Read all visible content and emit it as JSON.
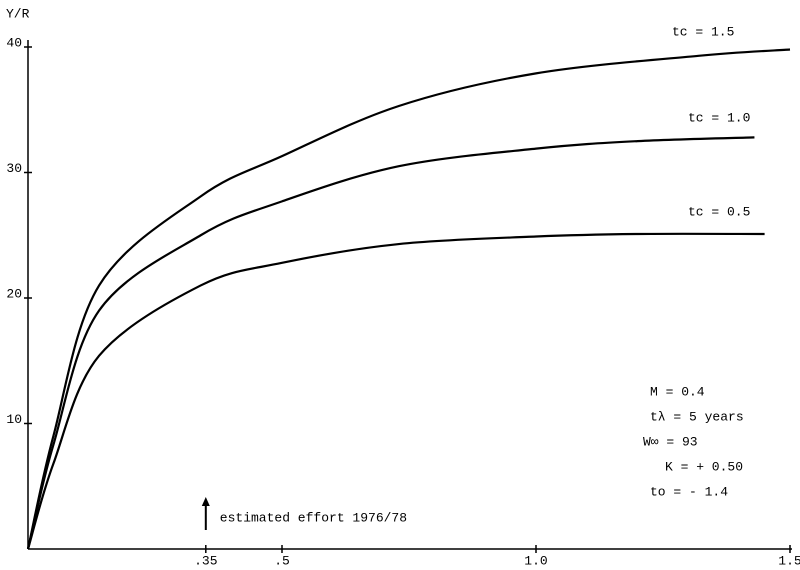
{
  "chart_data": {
    "type": "line",
    "ylabel": "Y/R",
    "xlim": [
      0,
      1.5
    ],
    "ylim": [
      0,
      40
    ],
    "xticks": [
      {
        "value": 0.35,
        "label": ".35"
      },
      {
        "value": 0.5,
        "label": ".5"
      },
      {
        "value": 1,
        "label": "1.0"
      },
      1.5
    ],
    "yticks": [
      10,
      20,
      30,
      40
    ],
    "series": [
      {
        "name": "tc = 1.5",
        "color": "#000000",
        "x": [
          0,
          0.05,
          0.14,
          0.34,
          0.5,
          0.73,
          1.0,
          1.32,
          1.5
        ],
        "values": [
          0,
          9,
          21,
          28.1,
          31.3,
          35.3,
          37.9,
          39.3,
          39.8
        ]
      },
      {
        "name": "tc = 1.0",
        "color": "#000000",
        "x": [
          0,
          0.05,
          0.14,
          0.34,
          0.5,
          0.73,
          1.0,
          1.2,
          1.43
        ],
        "values": [
          0,
          8.3,
          19,
          25,
          27.7,
          30.5,
          31.9,
          32.5,
          32.8
        ]
      },
      {
        "name": "tc = 0.5",
        "color": "#000000",
        "x": [
          0,
          0.05,
          0.14,
          0.34,
          0.5,
          0.73,
          1.0,
          1.2,
          1.45
        ],
        "values": [
          0,
          6.8,
          15.4,
          21,
          22.8,
          24.3,
          24.9,
          25.1,
          25.1
        ]
      }
    ],
    "annotations": [
      {
        "text": "estimated effort 1976/78",
        "x": 0.35
      }
    ],
    "parameters": [
      "M = 0.4",
      "tλ = 5 years",
      "W∞ = 93",
      "K = + 0.50",
      "to = - 1.4"
    ]
  }
}
